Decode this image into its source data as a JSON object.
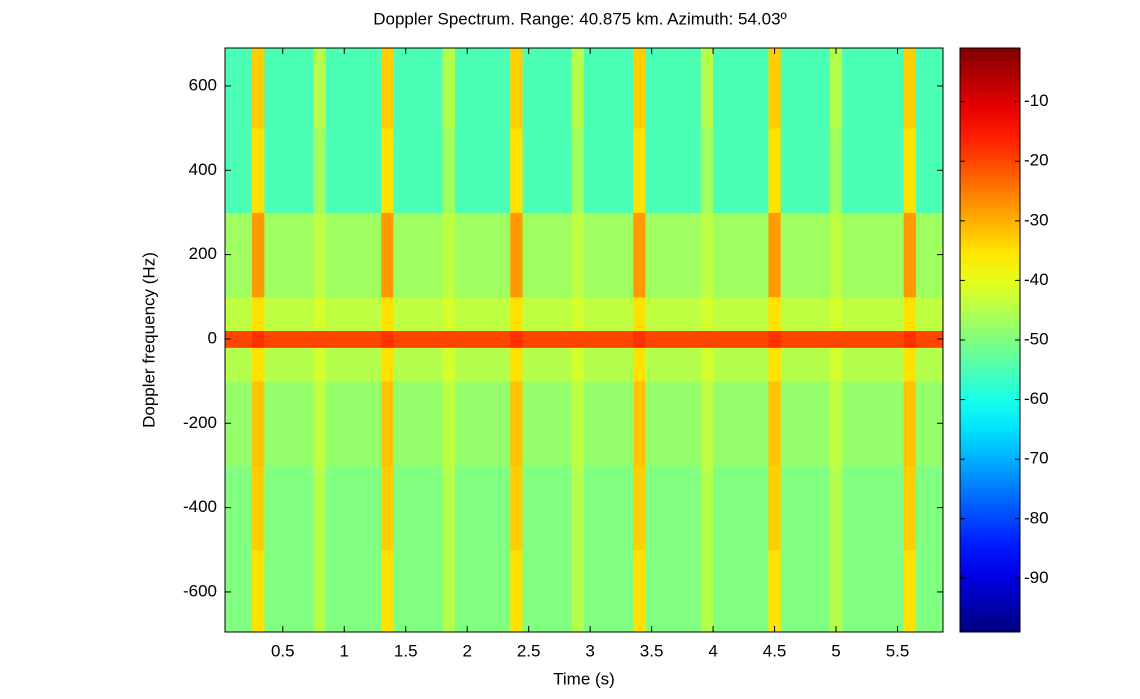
{
  "chart_data": {
    "type": "heatmap",
    "title": "Doppler Spectrum. Range: 40.875 km. Azimuth: 54.03º",
    "xlabel": "Time (s)",
    "ylabel": "Doppler frequency (Hz)",
    "xlim": [
      0.03,
      5.87
    ],
    "ylim": [
      -695,
      690
    ],
    "xticks": [
      0.5,
      1,
      1.5,
      2,
      2.5,
      3,
      3.5,
      4,
      4.5,
      5,
      5.5
    ],
    "yticks": [
      -600,
      -400,
      -200,
      0,
      200,
      400,
      600
    ],
    "xbins": [
      0.03,
      0.25,
      0.35,
      0.75,
      0.85,
      1.3,
      1.4,
      1.8,
      1.9,
      2.35,
      2.45,
      2.85,
      2.95,
      3.35,
      3.45,
      3.9,
      4.0,
      4.45,
      4.55,
      4.95,
      5.05,
      5.55,
      5.65,
      5.87
    ],
    "ybins": [
      -695,
      -500,
      -300,
      -100,
      -20,
      20,
      100,
      300,
      500,
      690
    ],
    "z": [
      [
        -50,
        -35,
        -50,
        -45,
        -50,
        -35,
        -50,
        -45,
        -50,
        -35,
        -50,
        -45,
        -50,
        -35,
        -50,
        -45,
        -50,
        -35,
        -50,
        -45,
        -50,
        -35,
        -50
      ],
      [
        -50,
        -33,
        -50,
        -45,
        -50,
        -33,
        -50,
        -45,
        -50,
        -33,
        -50,
        -45,
        -50,
        -33,
        -50,
        -45,
        -50,
        -33,
        -50,
        -45,
        -50,
        -33,
        -50
      ],
      [
        -48,
        -32,
        -48,
        -44,
        -48,
        -32,
        -48,
        -44,
        -48,
        -32,
        -48,
        -44,
        -48,
        -32,
        -48,
        -44,
        -48,
        -32,
        -48,
        -44,
        -48,
        -32,
        -48
      ],
      [
        -45,
        -35,
        -45,
        -42,
        -45,
        -35,
        -45,
        -42,
        -45,
        -35,
        -45,
        -42,
        -45,
        -35,
        -45,
        -42,
        -45,
        -35,
        -45,
        -42,
        -45,
        -35,
        -45
      ],
      [
        -20,
        -18,
        -20,
        -20,
        -20,
        -18,
        -20,
        -20,
        -20,
        -18,
        -20,
        -20,
        -20,
        -18,
        -20,
        -20,
        -20,
        -18,
        -20,
        -20,
        -20,
        -18,
        -20
      ],
      [
        -44,
        -35,
        -44,
        -42,
        -44,
        -35,
        -44,
        -42,
        -44,
        -35,
        -44,
        -42,
        -44,
        -35,
        -44,
        -42,
        -44,
        -35,
        -44,
        -42,
        -44,
        -35,
        -44
      ],
      [
        -47,
        -28,
        -47,
        -44,
        -47,
        -28,
        -47,
        -44,
        -47,
        -28,
        -47,
        -44,
        -47,
        -28,
        -47,
        -44,
        -47,
        -28,
        -47,
        -44,
        -47,
        -28,
        -47
      ],
      [
        -55,
        -35,
        -55,
        -47,
        -55,
        -35,
        -55,
        -47,
        -55,
        -35,
        -55,
        -47,
        -55,
        -35,
        -55,
        -47,
        -55,
        -35,
        -55,
        -47,
        -55,
        -35,
        -55
      ],
      [
        -55,
        -33,
        -55,
        -45,
        -55,
        -33,
        -55,
        -45,
        -55,
        -33,
        -55,
        -45,
        -55,
        -33,
        -55,
        -45,
        -55,
        -33,
        -55,
        -45,
        -55,
        -33,
        -55
      ]
    ],
    "colormap": "jet",
    "clim": [
      -99,
      -1
    ],
    "cticks": [
      -90,
      -80,
      -70,
      -60,
      -50,
      -40,
      -30,
      -20,
      -10
    ]
  }
}
